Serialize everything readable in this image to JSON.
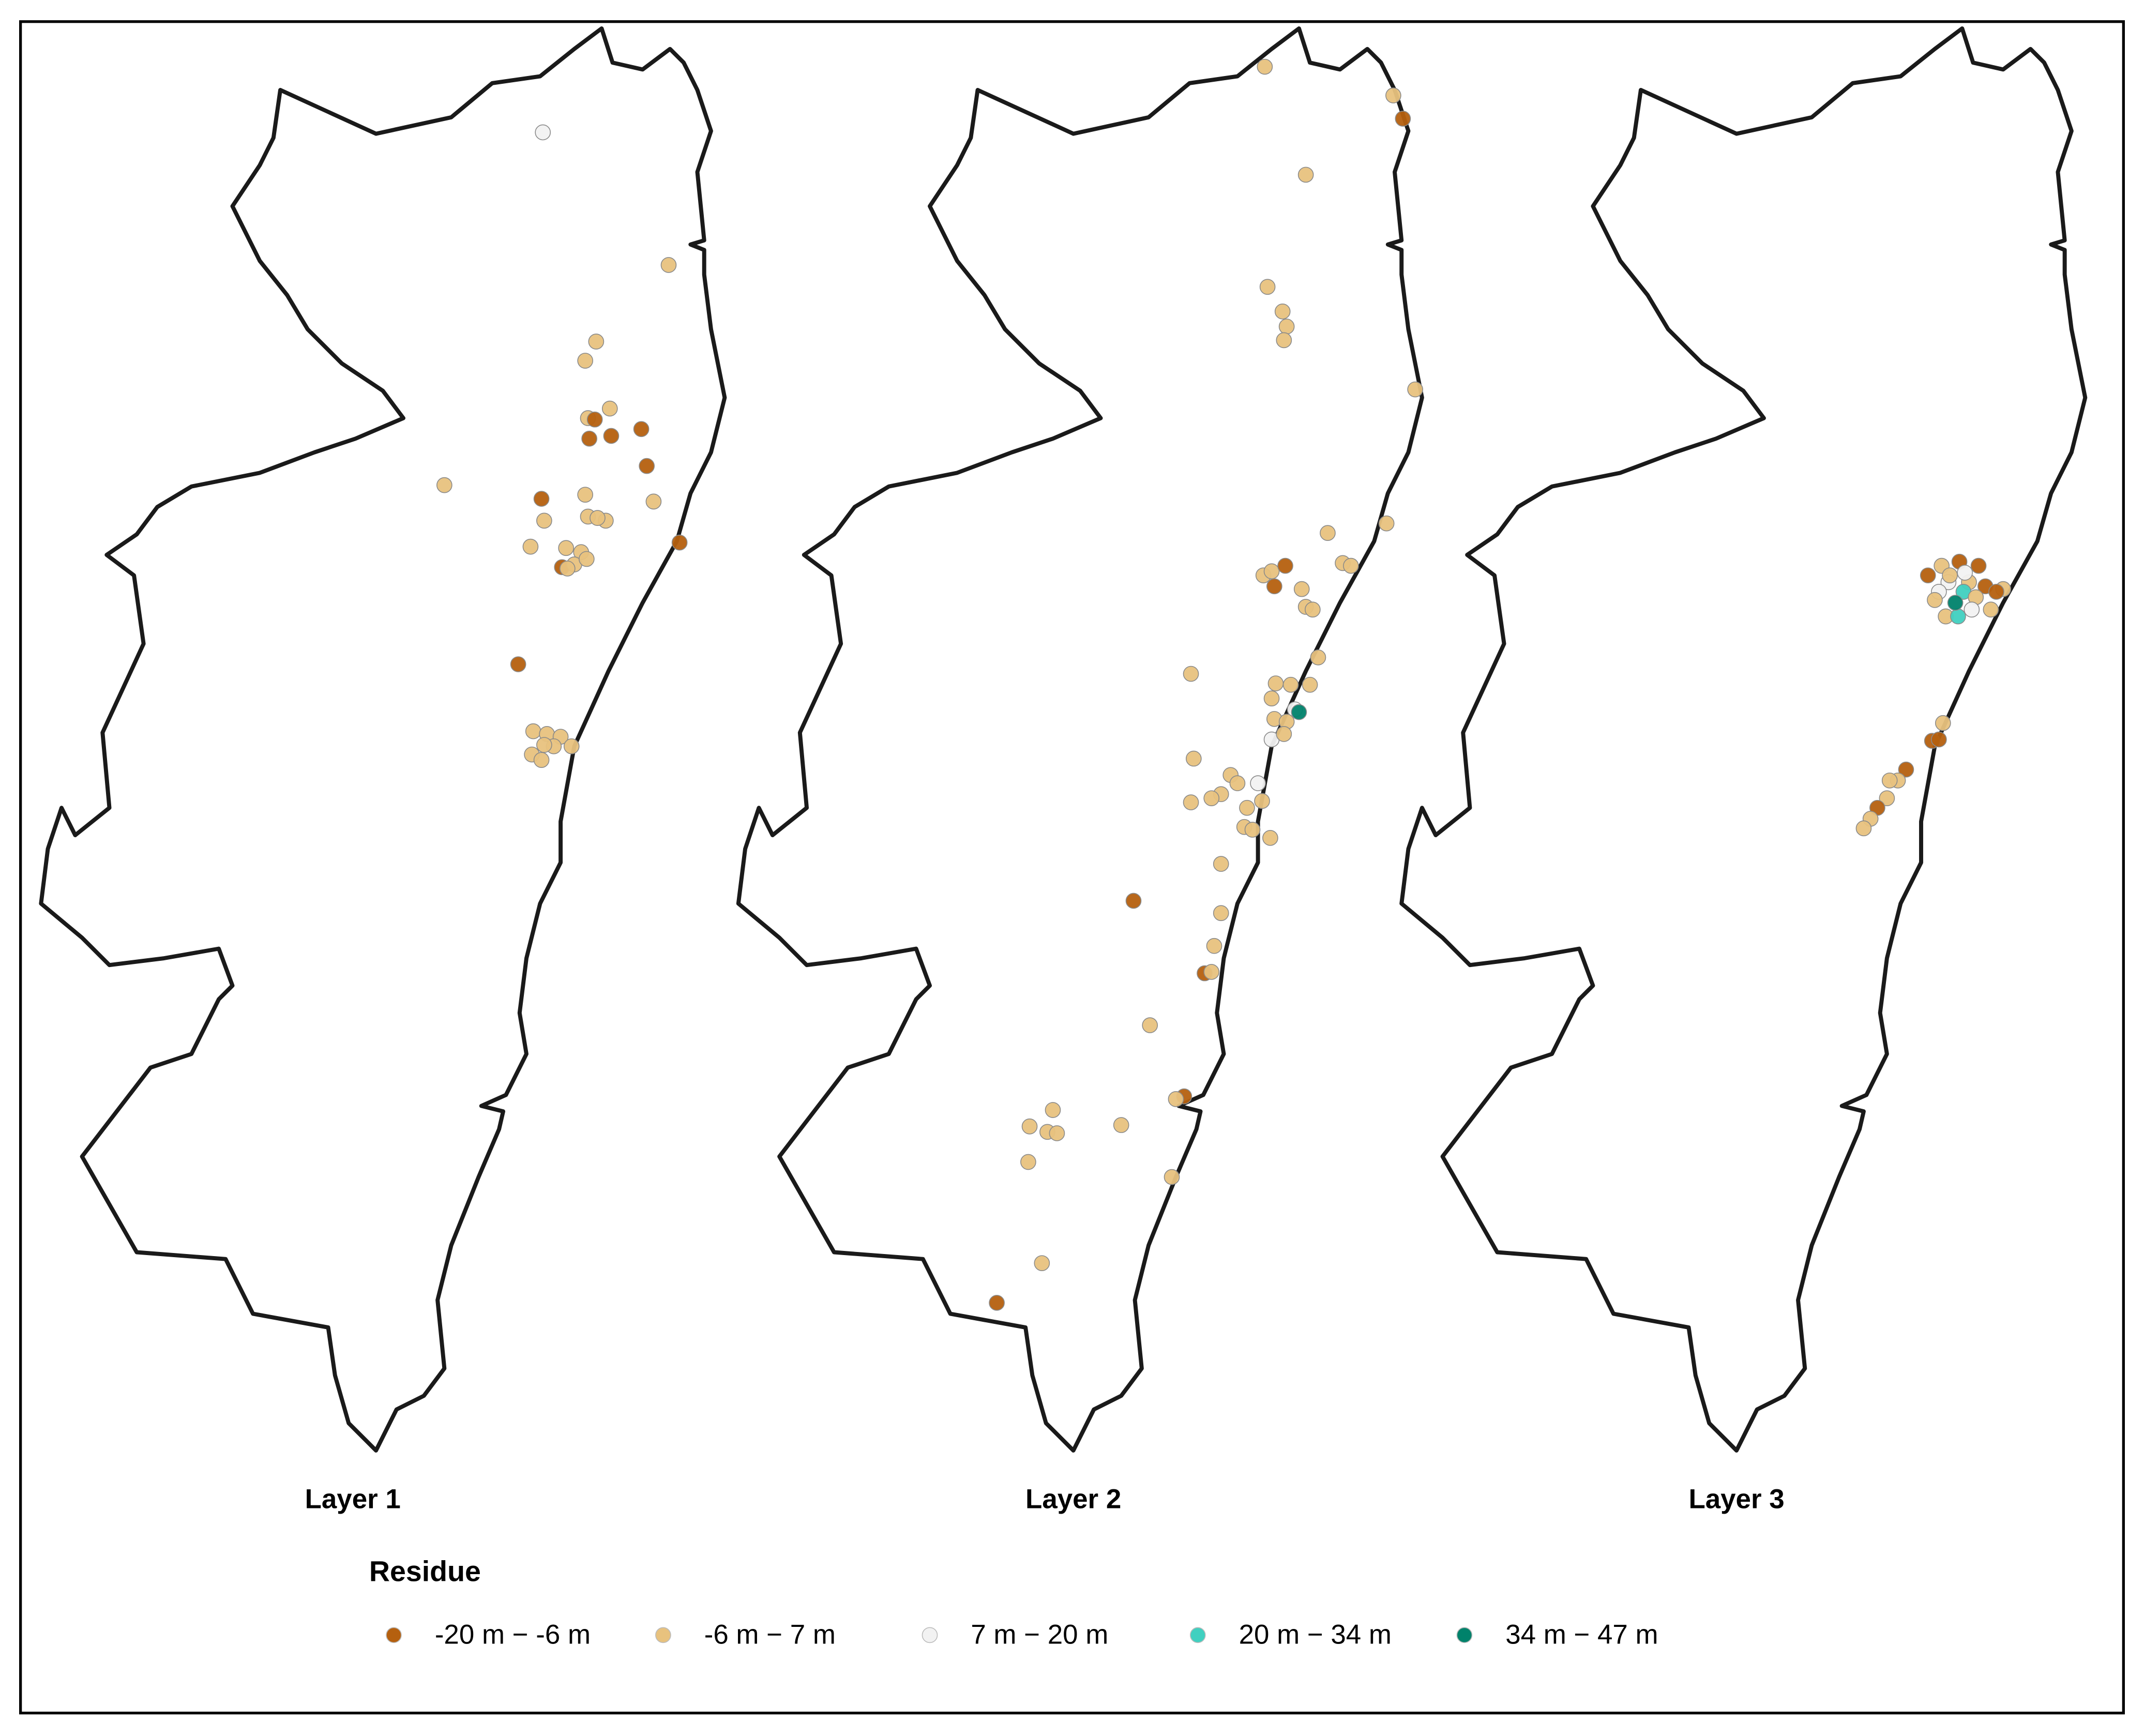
{
  "panels": [
    {
      "title": "Layer 1"
    },
    {
      "title": "Layer 2"
    },
    {
      "title": "Layer 3"
    }
  ],
  "legend": {
    "title": "Residue",
    "items": [
      {
        "label": "-20 m − -6 m",
        "color": "#b5600f"
      },
      {
        "label": "-6 m − 7 m",
        "color": "#e8c27e"
      },
      {
        "label": "7 m − 20 m",
        "color": "#f2f2f2"
      },
      {
        "label": "20 m − 34 m",
        "color": "#40d0c0"
      },
      {
        "label": "34 m − 47 m",
        "color": "#00826b"
      }
    ]
  }
}
